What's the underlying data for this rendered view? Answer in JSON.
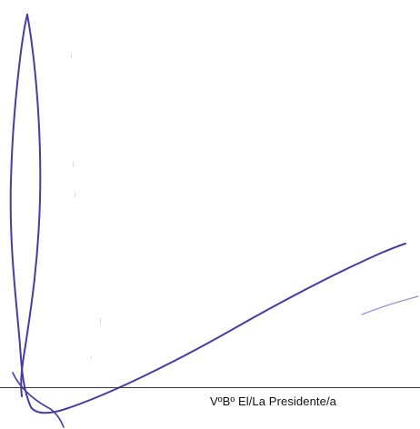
{
  "footer": {
    "caption": "VºBº El/La Presidente/a"
  },
  "colors": {
    "ink": "#4a3aa8",
    "rule": "#3b3b3b"
  }
}
